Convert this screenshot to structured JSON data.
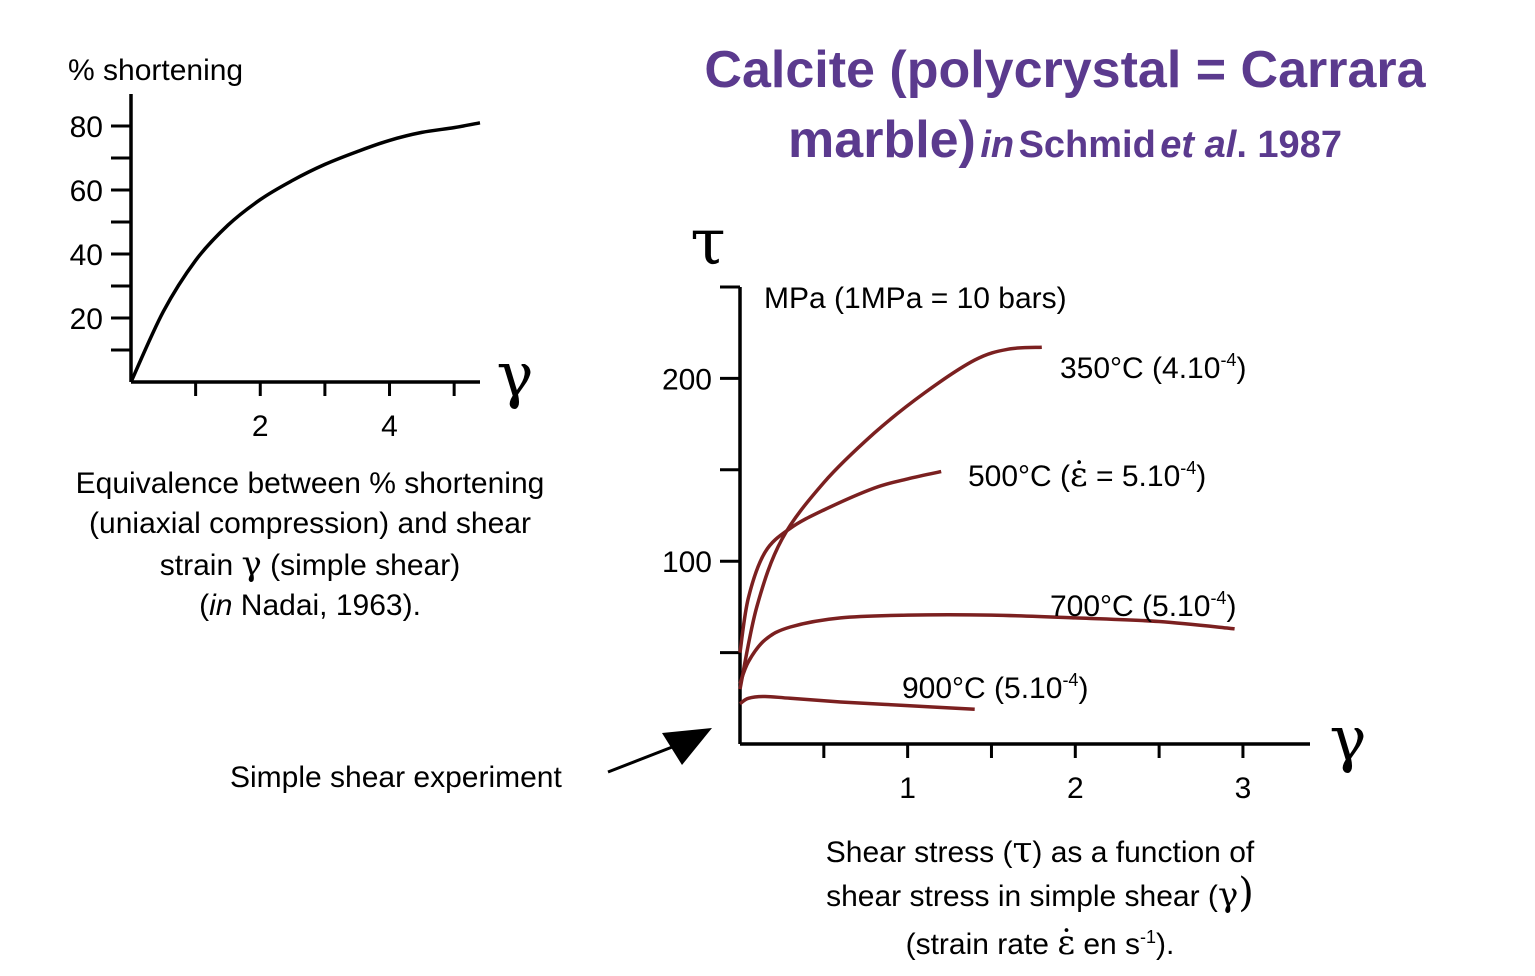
{
  "title": {
    "line1": "Calcite (polycrystal = Carrara",
    "line2_main": "marble)",
    "line2_in": "in",
    "line2_author": "Schmid",
    "line2_etal": "et al",
    "line2_year": ". 1987"
  },
  "left_caption": {
    "line1": "Equivalence between % shortening",
    "line2": "(uniaxial compression) and shear",
    "line3_a": "strain",
    "line3_gamma": "γ",
    "line3_b": "(simple shear)",
    "line4_open": "(",
    "line4_in": "in",
    "line4_rest": "Nadai, 1963)."
  },
  "right_caption": {
    "line1_a": "Shear stress (",
    "line1_tau": "τ",
    "line1_b": ") as a function of",
    "line2_a": "shear stress in simple shear (",
    "line2_gamma": "γ",
    "line2_b": ")",
    "line3_a": "(strain rate",
    "line3_eps": "ε̇",
    "line3_b": "en s",
    "line3_sup": "-1",
    "line3_c": ")."
  },
  "annotation": {
    "arrow_label": "Simple shear experiment"
  },
  "colors": {
    "title": "#5b3a8e",
    "curves": "#7b2020",
    "axes": "#000000"
  },
  "chart_data": [
    {
      "type": "line",
      "title": "",
      "ylabel": "% shortening",
      "xlabel": "γ",
      "xlim": [
        0,
        5.4
      ],
      "ylim": [
        0,
        90
      ],
      "xticks": [
        1,
        2,
        3,
        4,
        5
      ],
      "xtick_labels": [
        "",
        "2",
        "",
        "4",
        ""
      ],
      "yticks": [
        10,
        20,
        30,
        40,
        50,
        60,
        70,
        80
      ],
      "ytick_labels": [
        "",
        "20",
        "",
        "40",
        "",
        "60",
        "",
        "80"
      ],
      "grid": false,
      "series": [
        {
          "x": [
            0,
            0.5,
            1,
            1.5,
            2,
            2.5,
            3,
            3.5,
            4,
            4.5,
            5,
            5.4
          ],
          "y": [
            0,
            22,
            38,
            49,
            57,
            63,
            68,
            72,
            75.5,
            78,
            79.5,
            81
          ]
        }
      ]
    },
    {
      "type": "line",
      "title": "",
      "ylabel": "τ",
      "yunit": "MPa (1MPa = 10 bars)",
      "xlabel": "γ",
      "xlim": [
        0,
        3.4
      ],
      "ylim": [
        0,
        250
      ],
      "xticks": [
        0.5,
        1,
        1.5,
        2,
        2.5,
        3
      ],
      "xtick_labels": [
        "",
        "1",
        "",
        "2",
        "",
        "3"
      ],
      "yticks": [
        50,
        100,
        150,
        200,
        250
      ],
      "ytick_labels": [
        "",
        "100",
        "",
        "200",
        ""
      ],
      "grid": false,
      "legend": "inline labels at curve ends",
      "series": [
        {
          "label_main": "350°C (4.10",
          "label_sup": "-4",
          "label_end": ")",
          "x": [
            0,
            0.1,
            0.25,
            0.5,
            0.8,
            1.1,
            1.4,
            1.6,
            1.8
          ],
          "y": [
            30,
            75,
            112,
            143,
            170,
            192,
            210,
            216,
            217
          ]
        },
        {
          "label_main": "500°C (",
          "label_eps": "ε̇",
          "label_mid": " = 5.10",
          "label_sup": "-4",
          "label_end": ")",
          "x": [
            0,
            0.05,
            0.15,
            0.3,
            0.5,
            0.8,
            1.0,
            1.2
          ],
          "y": [
            50,
            80,
            105,
            118,
            128,
            140,
            145,
            149
          ]
        },
        {
          "label_main": "700°C (5.10",
          "label_sup": "-4",
          "label_end": ")",
          "x": [
            0,
            0.05,
            0.15,
            0.3,
            0.6,
            1.0,
            1.5,
            2.0,
            2.5,
            2.95
          ],
          "y": [
            33,
            45,
            57,
            64,
            69,
            70.5,
            70.5,
            69,
            67,
            63
          ]
        },
        {
          "label_main": "900°C (5.10",
          "label_sup": "-4",
          "label_end": ")",
          "x": [
            0,
            0.05,
            0.15,
            0.3,
            0.6,
            1.0,
            1.4
          ],
          "y": [
            22,
            25,
            26,
            25,
            23,
            21,
            19
          ]
        }
      ]
    }
  ]
}
